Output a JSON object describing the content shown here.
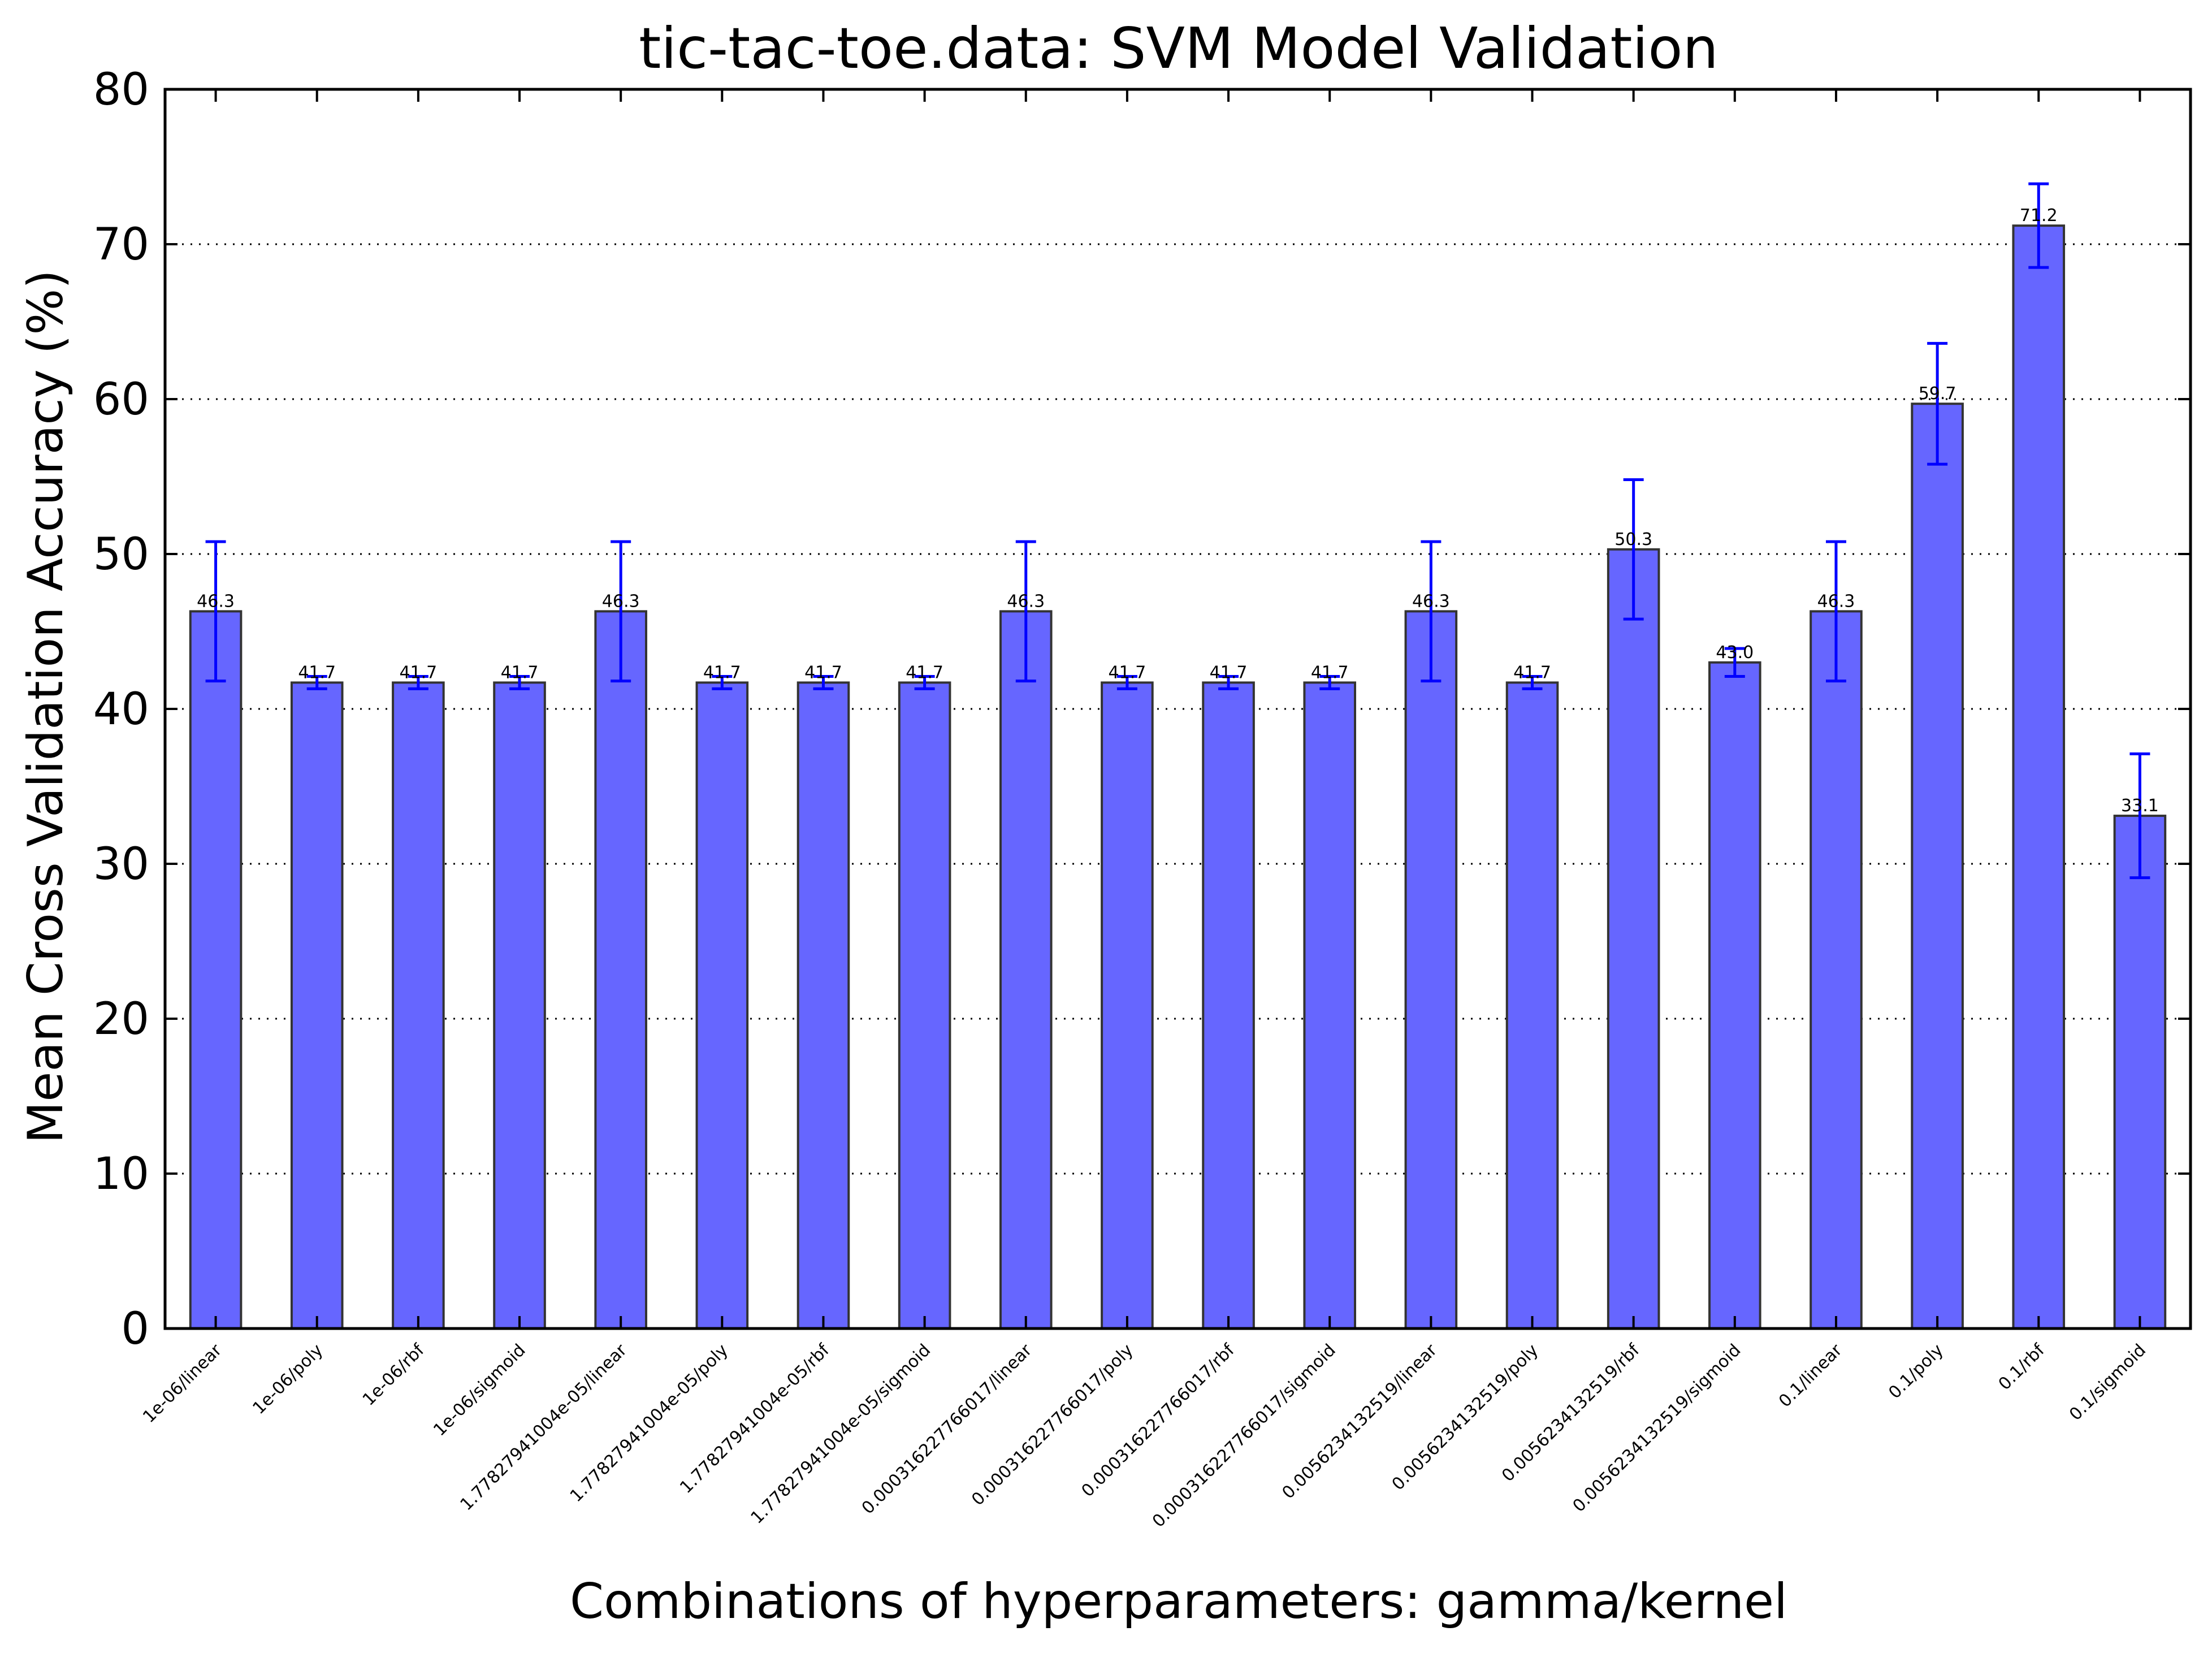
{
  "chart_data": {
    "type": "bar",
    "title": "tic-tac-toe.data: SVM Model Validation",
    "xlabel": "Combinations of hyperparameters: gamma/kernel",
    "ylabel": "Mean Cross Validation Accuracy (%)",
    "ylim": [
      0,
      80
    ],
    "yticks": [
      0,
      10,
      20,
      30,
      40,
      50,
      60,
      70,
      80
    ],
    "grid": "horizontal dotted",
    "categories": [
      "1e-06/linear",
      "1e-06/poly",
      "1e-06/rbf",
      "1e-06/sigmoid",
      "1.77827941004e-05/linear",
      "1.77827941004e-05/poly",
      "1.77827941004e-05/rbf",
      "1.77827941004e-05/sigmoid",
      "0.000316227766017/linear",
      "0.000316227766017/poly",
      "0.000316227766017/rbf",
      "0.000316227766017/sigmoid",
      "0.0056234132519/linear",
      "0.0056234132519/poly",
      "0.0056234132519/rbf",
      "0.0056234132519/sigmoid",
      "0.1/linear",
      "0.1/poly",
      "0.1/rbf",
      "0.1/sigmoid"
    ],
    "values": [
      46.3,
      41.7,
      41.7,
      41.7,
      46.3,
      41.7,
      41.7,
      41.7,
      46.3,
      41.7,
      41.7,
      41.7,
      46.3,
      41.7,
      50.3,
      43.0,
      46.3,
      59.7,
      71.2,
      33.1
    ],
    "value_labels": [
      "46.3",
      "41.7",
      "41.7",
      "41.7",
      "46.3",
      "41.7",
      "41.7",
      "41.7",
      "46.3",
      "41.7",
      "41.7",
      "41.7",
      "46.3",
      "41.7",
      "50.3",
      "43.0",
      "46.3",
      "59.7",
      "71.2",
      "33.1"
    ],
    "errors": [
      4.5,
      0.4,
      0.4,
      0.4,
      4.5,
      0.4,
      0.4,
      0.4,
      4.5,
      0.4,
      0.4,
      0.4,
      4.5,
      0.4,
      4.5,
      0.9,
      4.5,
      3.9,
      2.7,
      4.0
    ],
    "colors": {
      "bar": "#6666ff",
      "bar_edge": "#333333",
      "error_bar": "#0000ff",
      "grid": "#000000"
    }
  }
}
